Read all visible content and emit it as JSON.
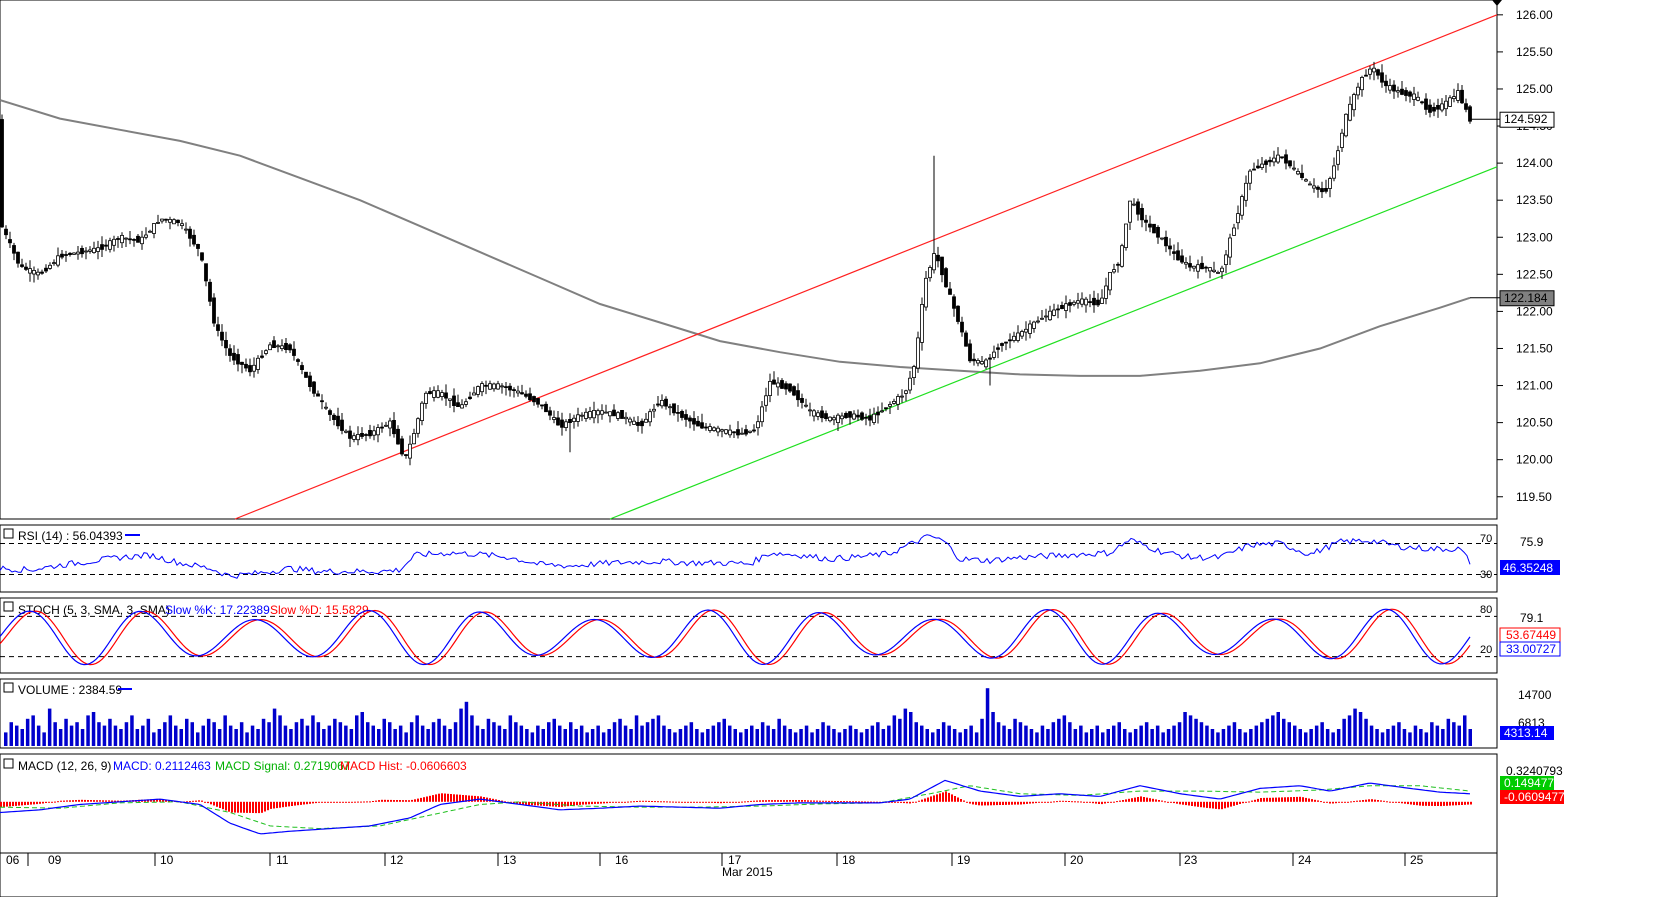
{
  "chart_data": {
    "type": "candlestick",
    "instrument_price_axis": {
      "ylim": [
        119.2,
        126.2
      ],
      "ticks": [
        "126.00",
        "125.50",
        "125.00",
        "124.50",
        "124.00",
        "123.50",
        "123.00",
        "122.50",
        "122.00",
        "121.50",
        "121.00",
        "120.50",
        "120.00",
        "119.50"
      ],
      "last_price_tag": "124.592",
      "sma_tag": "122.184"
    },
    "sma_path": [
      [
        0,
        124.85
      ],
      [
        60,
        124.6
      ],
      [
        120,
        124.45
      ],
      [
        180,
        124.3
      ],
      [
        240,
        124.1
      ],
      [
        300,
        123.8
      ],
      [
        360,
        123.5
      ],
      [
        420,
        123.15
      ],
      [
        480,
        122.8
      ],
      [
        540,
        122.45
      ],
      [
        600,
        122.1
      ],
      [
        660,
        121.85
      ],
      [
        720,
        121.6
      ],
      [
        780,
        121.45
      ],
      [
        840,
        121.32
      ],
      [
        900,
        121.25
      ],
      [
        960,
        121.2
      ],
      [
        1020,
        121.15
      ],
      [
        1080,
        121.13
      ],
      [
        1140,
        121.13
      ],
      [
        1200,
        121.2
      ],
      [
        1260,
        121.3
      ],
      [
        1320,
        121.5
      ],
      [
        1380,
        121.8
      ],
      [
        1440,
        122.05
      ],
      [
        1470,
        122.184
      ]
    ],
    "channel_upper": [
      [
        235,
        119.2
      ],
      [
        1497,
        126.0
      ]
    ],
    "channel_lower": [
      [
        610,
        119.2
      ],
      [
        1497,
        123.95
      ]
    ],
    "candle_path": [
      [
        0,
        123.2
      ],
      [
        20,
        122.6
      ],
      [
        40,
        122.5
      ],
      [
        60,
        122.75
      ],
      [
        80,
        122.8
      ],
      [
        100,
        122.85
      ],
      [
        120,
        123.0
      ],
      [
        140,
        122.95
      ],
      [
        160,
        123.25
      ],
      [
        180,
        123.2
      ],
      [
        200,
        122.8
      ],
      [
        215,
        121.8
      ],
      [
        230,
        121.4
      ],
      [
        250,
        121.2
      ],
      [
        270,
        121.55
      ],
      [
        290,
        121.5
      ],
      [
        310,
        121.0
      ],
      [
        330,
        120.6
      ],
      [
        350,
        120.3
      ],
      [
        370,
        120.35
      ],
      [
        390,
        120.5
      ],
      [
        405,
        120.0
      ],
      [
        415,
        120.4
      ],
      [
        425,
        120.9
      ],
      [
        440,
        120.9
      ],
      [
        460,
        120.7
      ],
      [
        480,
        121.0
      ],
      [
        500,
        121.0
      ],
      [
        520,
        120.9
      ],
      [
        540,
        120.75
      ],
      [
        560,
        120.45
      ],
      [
        580,
        120.6
      ],
      [
        600,
        120.65
      ],
      [
        620,
        120.6
      ],
      [
        640,
        120.45
      ],
      [
        660,
        120.8
      ],
      [
        680,
        120.6
      ],
      [
        700,
        120.45
      ],
      [
        720,
        120.4
      ],
      [
        740,
        120.35
      ],
      [
        755,
        120.4
      ],
      [
        770,
        121.05
      ],
      [
        790,
        120.95
      ],
      [
        810,
        120.65
      ],
      [
        830,
        120.55
      ],
      [
        850,
        120.6
      ],
      [
        870,
        120.55
      ],
      [
        890,
        120.75
      ],
      [
        905,
        120.9
      ],
      [
        915,
        121.3
      ],
      [
        925,
        122.4
      ],
      [
        935,
        122.8
      ],
      [
        945,
        122.4
      ],
      [
        960,
        121.8
      ],
      [
        970,
        121.35
      ],
      [
        985,
        121.3
      ],
      [
        1000,
        121.55
      ],
      [
        1020,
        121.7
      ],
      [
        1040,
        121.9
      ],
      [
        1060,
        122.05
      ],
      [
        1080,
        122.15
      ],
      [
        1100,
        122.1
      ],
      [
        1110,
        122.5
      ],
      [
        1120,
        122.7
      ],
      [
        1130,
        123.5
      ],
      [
        1145,
        123.2
      ],
      [
        1160,
        123.0
      ],
      [
        1175,
        122.75
      ],
      [
        1190,
        122.6
      ],
      [
        1205,
        122.6
      ],
      [
        1220,
        122.5
      ],
      [
        1235,
        123.2
      ],
      [
        1250,
        123.9
      ],
      [
        1265,
        124.0
      ],
      [
        1280,
        124.1
      ],
      [
        1295,
        123.9
      ],
      [
        1310,
        123.7
      ],
      [
        1325,
        123.6
      ],
      [
        1335,
        124.0
      ],
      [
        1345,
        124.6
      ],
      [
        1360,
        125.1
      ],
      [
        1372,
        125.3
      ],
      [
        1385,
        125.05
      ],
      [
        1400,
        124.95
      ],
      [
        1415,
        124.9
      ],
      [
        1430,
        124.7
      ],
      [
        1445,
        124.8
      ],
      [
        1458,
        124.95
      ],
      [
        1470,
        124.59
      ]
    ],
    "x_axis": {
      "date_ticks": [
        "06",
        "09",
        "10",
        "11",
        "12",
        "13",
        "16",
        "17",
        "18",
        "19",
        "20",
        "23",
        "24",
        "25"
      ],
      "month_label": "Mar 2015"
    },
    "rsi_panel": {
      "label": "RSI (14) : 56.04393",
      "levels": [
        "70",
        "30"
      ],
      "top_label": "75.9",
      "value_tag": "46.35248",
      "ylim": [
        10,
        90
      ],
      "path": [
        [
          0,
          38
        ],
        [
          30,
          36
        ],
        [
          60,
          42
        ],
        [
          90,
          47
        ],
        [
          120,
          52
        ],
        [
          150,
          55
        ],
        [
          180,
          45
        ],
        [
          210,
          38
        ],
        [
          230,
          28
        ],
        [
          260,
          32
        ],
        [
          290,
          38
        ],
        [
          320,
          34
        ],
        [
          350,
          34
        ],
        [
          380,
          34
        ],
        [
          400,
          36
        ],
        [
          415,
          55
        ],
        [
          450,
          58
        ],
        [
          480,
          56
        ],
        [
          510,
          52
        ],
        [
          540,
          43
        ],
        [
          570,
          41
        ],
        [
          600,
          44
        ],
        [
          630,
          46
        ],
        [
          660,
          47
        ],
        [
          690,
          45
        ],
        [
          720,
          45
        ],
        [
          750,
          44
        ],
        [
          770,
          58
        ],
        [
          800,
          55
        ],
        [
          830,
          50
        ],
        [
          860,
          53
        ],
        [
          890,
          57
        ],
        [
          905,
          66
        ],
        [
          930,
          80
        ],
        [
          945,
          72
        ],
        [
          960,
          50
        ],
        [
          990,
          48
        ],
        [
          1020,
          52
        ],
        [
          1050,
          54
        ],
        [
          1080,
          56
        ],
        [
          1110,
          58
        ],
        [
          1130,
          75
        ],
        [
          1160,
          60
        ],
        [
          1190,
          52
        ],
        [
          1220,
          52
        ],
        [
          1250,
          68
        ],
        [
          1280,
          70
        ],
        [
          1310,
          56
        ],
        [
          1340,
          72
        ],
        [
          1370,
          74
        ],
        [
          1400,
          66
        ],
        [
          1430,
          63
        ],
        [
          1460,
          63
        ],
        [
          1470,
          46
        ]
      ]
    },
    "stoch_panel": {
      "label": "STOCH (5, 3, SMA, 3, SMA)",
      "k_label": "Slow %K: 17.22389",
      "d_label": "Slow %D: 15.5829",
      "levels": [
        "80",
        "20"
      ],
      "top_label": "79.1",
      "k_tag": "53.67449",
      "d_tag": "33.00727",
      "ylim": [
        0,
        100
      ]
    },
    "volume_panel": {
      "label": "VOLUME : 2384.59",
      "top_label": "14700",
      "mid_label": "6813",
      "value_tag": "4313.14",
      "bars": [
        20,
        35,
        30,
        25,
        40,
        45,
        30,
        20,
        55,
        35,
        25,
        40,
        30,
        35,
        25,
        45,
        50,
        35,
        30,
        40,
        30,
        25,
        35,
        45,
        25,
        30,
        40,
        20,
        25,
        35,
        45,
        30,
        25,
        40,
        35,
        20,
        30,
        40,
        35,
        25,
        45,
        30,
        25,
        35,
        20,
        30,
        25,
        40,
        35,
        55,
        45,
        30,
        25,
        35,
        40,
        30,
        45,
        35,
        25,
        30,
        40,
        35,
        30,
        25,
        45,
        50,
        35,
        30,
        25,
        40,
        35,
        25,
        30,
        20,
        35,
        45,
        30,
        25,
        35,
        40,
        30,
        25,
        35,
        55,
        65,
        45,
        30,
        25,
        40,
        35,
        30,
        25,
        45,
        35,
        30,
        25,
        20,
        30,
        25,
        35,
        40,
        30,
        25,
        35,
        25,
        30,
        20,
        25,
        30,
        20,
        25,
        35,
        40,
        30,
        25,
        45,
        30,
        35,
        40,
        45,
        30,
        25,
        20,
        25,
        30,
        35,
        25,
        20,
        25,
        30,
        35,
        40,
        30,
        25,
        20,
        25,
        30,
        25,
        35,
        30,
        25,
        40,
        30,
        25,
        20,
        25,
        30,
        20,
        25,
        35,
        30,
        25,
        20,
        25,
        30,
        25,
        20,
        25,
        30,
        35,
        25,
        30,
        45,
        40,
        55,
        50,
        35,
        30,
        25,
        20,
        25,
        35,
        30,
        25,
        20,
        25,
        30,
        20,
        40,
        85,
        50,
        35,
        30,
        25,
        40,
        35,
        30,
        25,
        20,
        30,
        25,
        35,
        40,
        45,
        35,
        25,
        30,
        20,
        25,
        30,
        20,
        25,
        30,
        35,
        25,
        20,
        25,
        30,
        35,
        25,
        30,
        20,
        25,
        30,
        35,
        50,
        45,
        40,
        35,
        30,
        25,
        20,
        25,
        30,
        35,
        25,
        20,
        25,
        30,
        35,
        40,
        45,
        50,
        40,
        35,
        30,
        25,
        20,
        25,
        30,
        35,
        25,
        20,
        25,
        40,
        45,
        55,
        50,
        40,
        30,
        25,
        20,
        25,
        30,
        35,
        25,
        20,
        30,
        25,
        20,
        35,
        30,
        25,
        40,
        35,
        30,
        45,
        25
      ]
    },
    "macd_panel": {
      "label": "MACD (12, 26, 9)",
      "macd_label": "MACD: 0.2112463",
      "signal_label": "MACD Signal: 0.2719067",
      "hist_label": "MACD Hist: -0.0606603",
      "top_label": "0.3240793",
      "macd_tag": "0.1494774",
      "hist_tag": "-0.0609477",
      "ylim": [
        -0.9,
        0.5
      ],
      "macd_path": [
        [
          0,
          -0.2
        ],
        [
          40,
          -0.15
        ],
        [
          80,
          -0.05
        ],
        [
          120,
          0.0
        ],
        [
          160,
          0.05
        ],
        [
          200,
          -0.05
        ],
        [
          230,
          -0.4
        ],
        [
          260,
          -0.6
        ],
        [
          290,
          -0.55
        ],
        [
          330,
          -0.5
        ],
        [
          370,
          -0.45
        ],
        [
          410,
          -0.3
        ],
        [
          440,
          -0.05
        ],
        [
          480,
          0.05
        ],
        [
          520,
          -0.05
        ],
        [
          560,
          -0.15
        ],
        [
          600,
          -0.12
        ],
        [
          640,
          -0.08
        ],
        [
          680,
          -0.1
        ],
        [
          720,
          -0.12
        ],
        [
          760,
          -0.05
        ],
        [
          800,
          -0.02
        ],
        [
          840,
          -0.02
        ],
        [
          880,
          -0.02
        ],
        [
          910,
          0.05
        ],
        [
          945,
          0.4
        ],
        [
          980,
          0.2
        ],
        [
          1020,
          0.1
        ],
        [
          1060,
          0.15
        ],
        [
          1100,
          0.1
        ],
        [
          1140,
          0.3
        ],
        [
          1180,
          0.15
        ],
        [
          1220,
          0.05
        ],
        [
          1260,
          0.25
        ],
        [
          1300,
          0.3
        ],
        [
          1330,
          0.2
        ],
        [
          1370,
          0.35
        ],
        [
          1410,
          0.25
        ],
        [
          1440,
          0.18
        ],
        [
          1470,
          0.15
        ]
      ],
      "signal_path": [
        [
          0,
          -0.1
        ],
        [
          60,
          -0.12
        ],
        [
          120,
          -0.02
        ],
        [
          180,
          0.0
        ],
        [
          230,
          -0.2
        ],
        [
          270,
          -0.45
        ],
        [
          320,
          -0.5
        ],
        [
          380,
          -0.45
        ],
        [
          430,
          -0.25
        ],
        [
          480,
          -0.05
        ],
        [
          520,
          0.0
        ],
        [
          580,
          -0.08
        ],
        [
          640,
          -0.1
        ],
        [
          700,
          -0.1
        ],
        [
          760,
          -0.08
        ],
        [
          820,
          -0.04
        ],
        [
          880,
          -0.02
        ],
        [
          930,
          0.15
        ],
        [
          970,
          0.3
        ],
        [
          1020,
          0.15
        ],
        [
          1080,
          0.12
        ],
        [
          1140,
          0.2
        ],
        [
          1200,
          0.2
        ],
        [
          1260,
          0.18
        ],
        [
          1320,
          0.22
        ],
        [
          1370,
          0.3
        ],
        [
          1420,
          0.3
        ],
        [
          1470,
          0.2
        ]
      ]
    }
  }
}
